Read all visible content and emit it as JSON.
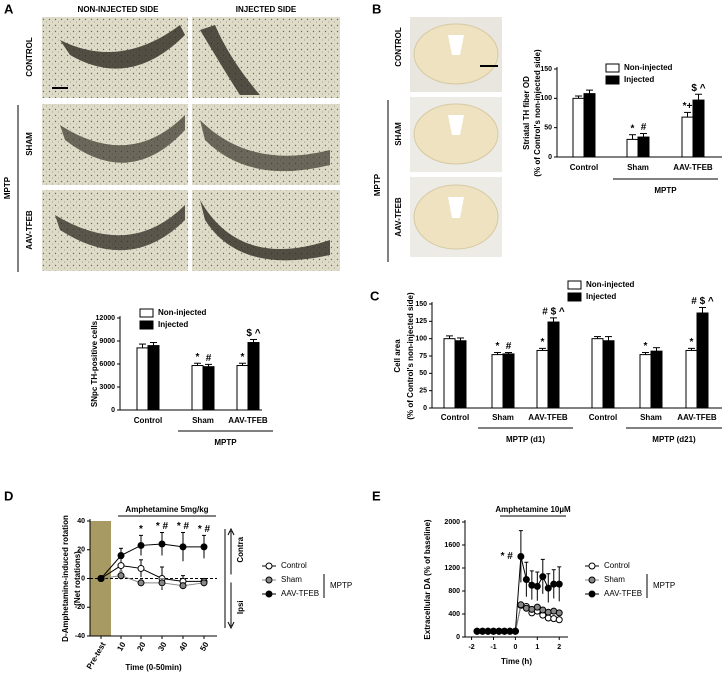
{
  "figure": {
    "panel_labels": [
      "A",
      "B",
      "C",
      "D",
      "E"
    ],
    "a": {
      "columns": [
        "NON-INJECTED SIDE",
        "INJECTED SIDE"
      ],
      "rows": [
        "CONTROL",
        "SHAM",
        "AAV-TFEB"
      ],
      "group": "MPTP"
    },
    "b": {
      "rows": [
        "CONTROL",
        "SHAM",
        "AAV-TFEB"
      ],
      "group": "MPTP"
    }
  },
  "chart_data": [
    {
      "type": "bar",
      "ylabel": [
        "SNpc TH-positive cells"
      ],
      "categories": [
        "Control",
        "Sham",
        "AAV-TFEB"
      ],
      "group_labels": [
        "MPTP"
      ],
      "ylim": [
        0,
        12000
      ],
      "yticks": [
        0,
        3000,
        6000,
        9000,
        12000
      ],
      "series": [
        {
          "name": "Non-injected",
          "color": "#ffffff",
          "values": [
            8100,
            5800,
            5800
          ],
          "errors": [
            500,
            300,
            300
          ],
          "marks": [
            null,
            "*",
            "*"
          ]
        },
        {
          "name": "Injected",
          "color": "#000000",
          "values": [
            8400,
            5650,
            8800
          ],
          "errors": [
            400,
            300,
            400
          ],
          "marks": [
            null,
            "#",
            "$ ^"
          ]
        }
      ]
    },
    {
      "type": "bar",
      "ylabel": [
        "Striatal TH fiber OD",
        "(% of Control's non-injected side)"
      ],
      "categories": [
        "Control",
        "Sham",
        "AAV-TFEB"
      ],
      "group_labels": [
        "MPTP"
      ],
      "ylim": [
        0,
        150
      ],
      "yticks": [
        0,
        50,
        100,
        150
      ],
      "series": [
        {
          "name": "Non-injected",
          "color": "#ffffff",
          "values": [
            100,
            30,
            68
          ],
          "errors": [
            4,
            8,
            8
          ],
          "marks": [
            null,
            "*",
            "*+"
          ]
        },
        {
          "name": "Injected",
          "color": "#000000",
          "values": [
            108,
            34,
            97
          ],
          "errors": [
            6,
            6,
            10
          ],
          "marks": [
            null,
            "#",
            "$ ^"
          ]
        }
      ]
    },
    {
      "type": "bar",
      "ylabel": [
        "Cell area",
        "(% of Control's non-injected side)"
      ],
      "categories": [
        "Control",
        "Sham",
        "AAV-TFEB",
        "Control",
        "Sham",
        "AAV-TFEB"
      ],
      "group_labels": [
        "MPTP (d1)",
        "MPTP (d21)"
      ],
      "ylim": [
        0,
        150
      ],
      "yticks": [
        0,
        25,
        50,
        75,
        100,
        125,
        150
      ],
      "series": [
        {
          "name": "Non-injected",
          "color": "#ffffff",
          "values": [
            100,
            77,
            83,
            100,
            77,
            83
          ],
          "errors": [
            4,
            3,
            3,
            3,
            3,
            3
          ],
          "marks": [
            null,
            "*",
            "*",
            null,
            "*",
            "*"
          ]
        },
        {
          "name": "Injected",
          "color": "#000000",
          "values": [
            97,
            78,
            124,
            97,
            82,
            137
          ],
          "errors": [
            4,
            2,
            6,
            6,
            5,
            8
          ],
          "marks": [
            null,
            "#",
            "# $ ^",
            null,
            null,
            "# $ ^"
          ]
        }
      ]
    },
    {
      "type": "line",
      "ylabel": [
        "D-Amphetamine-induced rotation",
        "(Net rotations)"
      ],
      "xlabel": "Time (0-50min)",
      "annotation": "Amphetamine 5mg/kg",
      "side_labels": [
        "Contra",
        "Ipsi"
      ],
      "legend_group": "MPTP",
      "categories": [
        "Pre-test",
        "10",
        "20",
        "30",
        "40",
        "50"
      ],
      "ylim": [
        -40,
        40
      ],
      "yticks": [
        -40,
        -20,
        0,
        20,
        40
      ],
      "series": [
        {
          "name": "Control",
          "color": "#ffffff",
          "values": [
            0,
            9,
            7,
            0,
            -2,
            -2
          ],
          "errors": [
            1,
            5,
            6,
            8,
            4,
            2
          ]
        },
        {
          "name": "Sham",
          "color": "#888888",
          "values": [
            0,
            2,
            -3,
            -3,
            -5,
            -3
          ],
          "errors": [
            1,
            3,
            2,
            3,
            2,
            2
          ]
        },
        {
          "name": "AAV-TFEB",
          "color": "#000000",
          "values": [
            0,
            16,
            23,
            24,
            22,
            22
          ],
          "errors": [
            1,
            5,
            7,
            8,
            10,
            8
          ],
          "marks": [
            null,
            null,
            "*",
            "* #",
            "* #",
            "* #"
          ]
        }
      ]
    },
    {
      "type": "line",
      "ylabel": [
        "Extracellular DA (% of baseline)"
      ],
      "xlabel": "Time (h)",
      "annotation": "Amphetamine 10µM",
      "legend_group": "MPTP",
      "x": [
        -1.75,
        -1.5,
        -1.25,
        -1,
        -0.75,
        -0.5,
        -0.25,
        0,
        0.25,
        0.5,
        0.75,
        1,
        1.25,
        1.5,
        1.75,
        2
      ],
      "xlim": [
        -2.3,
        2.4
      ],
      "xticks": [
        -2,
        -1,
        0,
        1,
        2
      ],
      "ylim": [
        0,
        2000
      ],
      "yticks": [
        0,
        400,
        800,
        1200,
        1600,
        2000
      ],
      "series": [
        {
          "name": "Control",
          "color": "#ffffff",
          "values": [
            100,
            100,
            100,
            100,
            100,
            100,
            100,
            100,
            550,
            530,
            420,
            450,
            380,
            330,
            320,
            300
          ]
        },
        {
          "name": "Sham",
          "color": "#888888",
          "values": [
            100,
            100,
            100,
            100,
            100,
            100,
            100,
            100,
            560,
            500,
            480,
            520,
            470,
            430,
            450,
            420
          ]
        },
        {
          "name": "AAV-TFEB",
          "color": "#000000",
          "values": [
            100,
            100,
            100,
            100,
            100,
            100,
            100,
            100,
            1400,
            1000,
            900,
            880,
            1050,
            850,
            920,
            920
          ],
          "errors": [
            30,
            30,
            30,
            30,
            30,
            30,
            30,
            30,
            450,
            300,
            250,
            250,
            300,
            250,
            250,
            300
          ],
          "marks": [
            null,
            null,
            null,
            null,
            null,
            null,
            null,
            null,
            "* #",
            null,
            null,
            null,
            null,
            null,
            null,
            null
          ]
        }
      ]
    }
  ]
}
